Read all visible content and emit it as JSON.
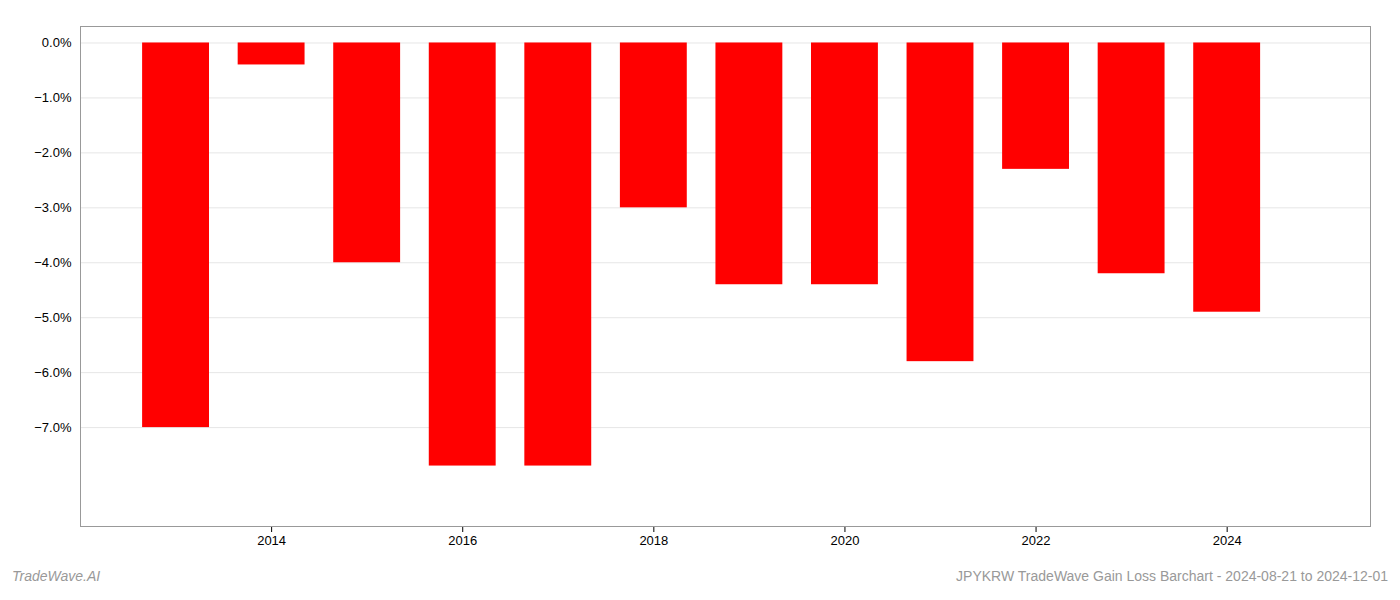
{
  "chart_data": {
    "type": "bar",
    "x": [
      2013,
      2014,
      2015,
      2016,
      2017,
      2018,
      2019,
      2020,
      2021,
      2022,
      2023,
      2024
    ],
    "values": [
      -0.07,
      -0.004,
      -0.04,
      -0.077,
      -0.077,
      -0.03,
      -0.044,
      -0.044,
      -0.058,
      -0.023,
      -0.042,
      -0.049
    ],
    "color": "#ff0000",
    "xlim": [
      2012,
      2025.5
    ],
    "xticks": [
      2014,
      2016,
      2018,
      2020,
      2022,
      2024
    ],
    "ylim": [
      -0.088,
      0.003
    ],
    "yticks": [
      {
        "value": 0.0,
        "label": "0.0%"
      },
      {
        "value": -0.01,
        "label": "−1.0%"
      },
      {
        "value": -0.02,
        "label": "−2.0%"
      },
      {
        "value": -0.03,
        "label": "−3.0%"
      },
      {
        "value": -0.04,
        "label": "−4.0%"
      },
      {
        "value": -0.05,
        "label": "−5.0%"
      },
      {
        "value": -0.06,
        "label": "−6.0%"
      },
      {
        "value": -0.07,
        "label": "−7.0%"
      }
    ],
    "grid": true,
    "annotations": [
      "TradeWave.AI",
      "JPYKRW TradeWave Gain Loss Barchart - 2024-08-21 to 2024-12-01"
    ]
  }
}
